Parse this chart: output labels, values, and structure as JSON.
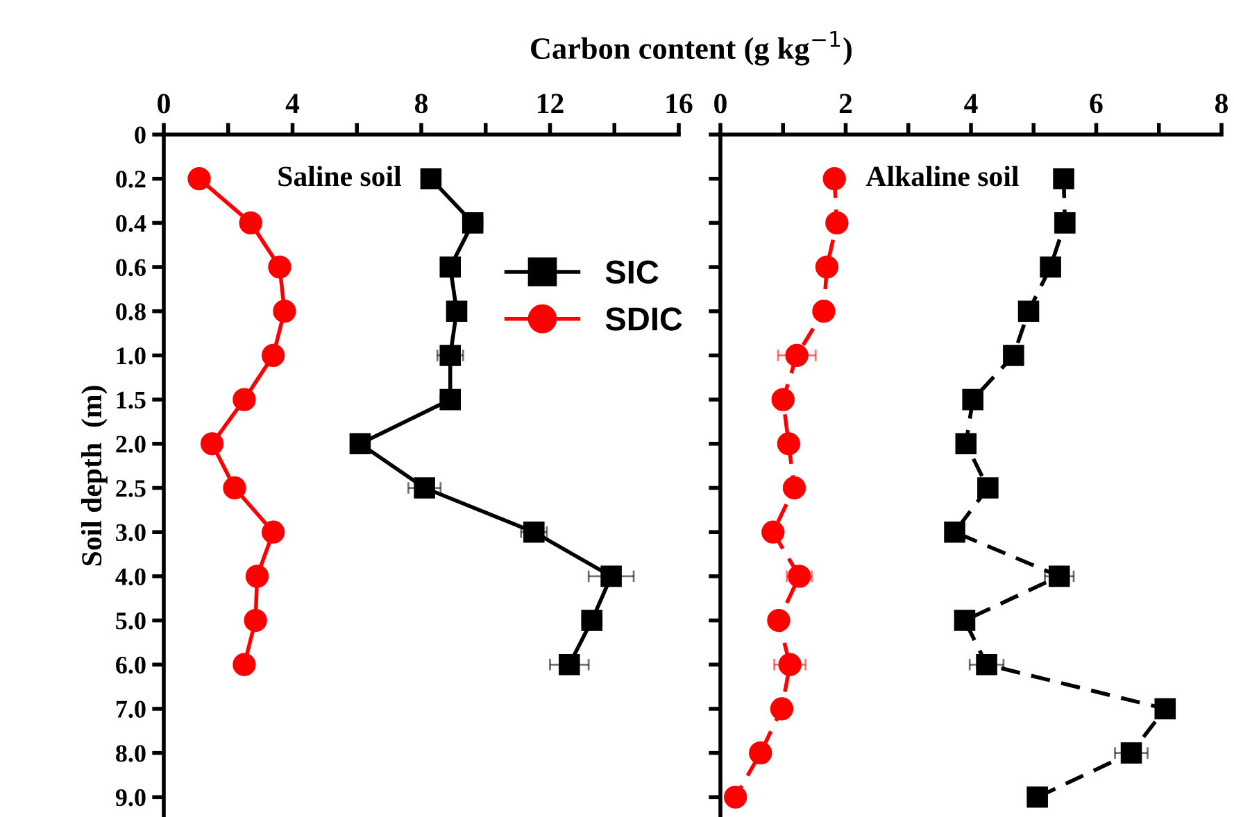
{
  "chart_data": [
    {
      "type": "line",
      "xlabel": "Carbon content (g kg$^{−1}$)",
      "ylabel": "Soil depth  (m)",
      "annotations": [
        "Saline soil"
      ],
      "categories": [
        "0",
        "0.2",
        "0.4",
        "0.6",
        "0.8",
        "1.0",
        "1.5",
        "2.0",
        "2.5",
        "3.0",
        "4.0",
        "5.0",
        "6.0",
        "7.0",
        "8.0",
        "9.0"
      ],
      "orientation": "horizontal",
      "xlim": [
        0,
        16
      ],
      "xticks": [
        0,
        {
          "value": 2,
          "label": null
        },
        4,
        {
          "value": 6,
          "label": null
        },
        8,
        {
          "value": 10,
          "label": null
        },
        12,
        {
          "value": 14,
          "label": null
        },
        16
      ],
      "legend": "right",
      "grid": false,
      "line_style": "solid",
      "series": [
        {
          "name": "SIC",
          "color": "#000000",
          "marker": "square",
          "values": [
            null,
            8.3,
            9.6,
            8.9,
            9.1,
            8.9,
            8.9,
            6.1,
            8.1,
            11.5,
            13.9,
            13.3,
            12.6,
            null,
            null,
            null
          ],
          "errors": [
            null,
            null,
            0.3,
            0.2,
            0.2,
            0.4,
            0.3,
            null,
            0.5,
            0.4,
            0.7,
            0.3,
            0.6,
            null,
            null,
            null
          ]
        },
        {
          "name": "SDIC",
          "color": "#ff0000",
          "marker": "circle",
          "values": [
            null,
            1.1,
            2.7,
            3.6,
            3.75,
            3.4,
            2.5,
            1.5,
            2.2,
            3.4,
            2.9,
            2.85,
            2.5,
            null,
            null,
            null
          ]
        }
      ]
    },
    {
      "type": "line",
      "annotations": [
        "Alkaline soil"
      ],
      "categories": [
        "0",
        "0.2",
        "0.4",
        "0.6",
        "0.8",
        "1.0",
        "1.5",
        "2.0",
        "2.5",
        "3.0",
        "4.0",
        "5.0",
        "6.0",
        "7.0",
        "8.0",
        "9.0"
      ],
      "orientation": "horizontal",
      "xlim": [
        0,
        8
      ],
      "xticks": [
        0,
        {
          "value": 1,
          "label": null
        },
        2,
        {
          "value": 3,
          "label": null
        },
        4,
        {
          "value": 5,
          "label": null
        },
        6,
        {
          "value": 7,
          "label": null
        },
        8
      ],
      "tick_labels": "x",
      "grid": false,
      "line_style": "dashed",
      "series": [
        {
          "color": "#000000",
          "marker": "square",
          "values": [
            null,
            5.48,
            5.5,
            5.27,
            4.92,
            4.68,
            4.03,
            3.92,
            4.27,
            3.74,
            5.41,
            3.9,
            4.25,
            7.1,
            6.56,
            5.06
          ],
          "errors": [
            null,
            null,
            null,
            null,
            null,
            null,
            null,
            null,
            null,
            null,
            0.23,
            null,
            0.27,
            null,
            0.26,
            null
          ]
        },
        {
          "color": "#ff0000",
          "marker": "circle",
          "values": [
            null,
            1.82,
            1.86,
            1.7,
            1.65,
            1.22,
            1.0,
            1.09,
            1.18,
            0.84,
            1.26,
            0.93,
            1.11,
            0.98,
            0.64,
            0.24
          ],
          "errors": [
            null,
            null,
            null,
            null,
            null,
            0.3,
            null,
            null,
            null,
            null,
            0.2,
            null,
            0.25,
            null,
            null,
            null
          ]
        }
      ]
    }
  ]
}
